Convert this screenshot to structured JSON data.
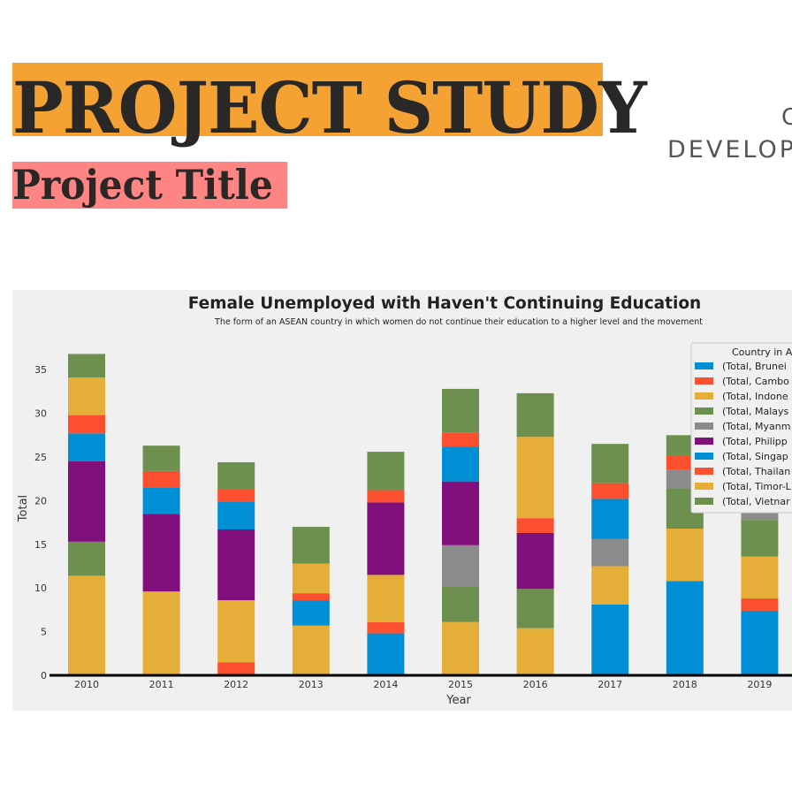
{
  "header": {
    "title": "PROJECT STUDY",
    "subtitle": "Project Title",
    "right_line1": "C",
    "right_line2": "DEVELOP"
  },
  "colors": {
    "title_highlight": "#f4a233",
    "subtitle_highlight": "#ff8585",
    "panel_bg": "#f0f0f0"
  },
  "chart_data": {
    "type": "bar",
    "stacked": true,
    "title": "Female Unemployed with Haven't Continuing Education",
    "subtitle": "The form of an ASEAN country in which women do not continue their education to a higher level and the movement",
    "xlabel": "Year",
    "ylabel": "Total",
    "ylim": [
      0,
      37.5
    ],
    "yticks": [
      0,
      5,
      10,
      15,
      20,
      25,
      30,
      35
    ],
    "grid": false,
    "legend_title": "Country in A",
    "legend_position": "right",
    "categories": [
      "2010",
      "2011",
      "2012",
      "2013",
      "2014",
      "2015",
      "2016",
      "2017",
      "2018",
      "2019"
    ],
    "series": [
      {
        "name": "(Total, Brunei",
        "color": "#008fd5",
        "values": [
          0,
          0,
          0,
          0,
          4.8,
          0,
          0,
          8.1,
          10.8,
          7.4
        ]
      },
      {
        "name": "(Total, Cambo",
        "color": "#fc4f30",
        "values": [
          0,
          0,
          1.5,
          0,
          1.3,
          0,
          0,
          0,
          0,
          1.4
        ]
      },
      {
        "name": "(Total, Indone",
        "color": "#e5ae38",
        "values": [
          11.4,
          9.6,
          7.1,
          5.7,
          5.4,
          6.1,
          5.4,
          4.4,
          6.0,
          4.8
        ]
      },
      {
        "name": "(Total, Malays",
        "color": "#6d904f",
        "values": [
          3.9,
          0,
          0,
          0,
          0,
          4.1,
          4.5,
          0,
          4.6,
          4.2
        ]
      },
      {
        "name": "(Total, Myanm",
        "color": "#8b8b8b",
        "values": [
          0,
          0,
          0,
          0,
          0,
          4.7,
          0,
          3.1,
          2.1,
          0.9
        ]
      },
      {
        "name": "(Total, Philipp",
        "color": "#810f7c",
        "values": [
          9.2,
          8.9,
          8.1,
          0,
          8.3,
          7.3,
          6.4,
          0,
          0,
          0
        ]
      },
      {
        "name": "(Total, Singap",
        "color": "#008fd5",
        "values": [
          3.2,
          3.0,
          3.2,
          2.9,
          0,
          4.0,
          0,
          4.6,
          0,
          0
        ]
      },
      {
        "name": "(Total, Thailan",
        "color": "#fc4f30",
        "values": [
          2.1,
          1.9,
          1.4,
          0.8,
          1.4,
          1.6,
          1.7,
          1.8,
          1.7,
          0
        ]
      },
      {
        "name": "(Total, Timor-L",
        "color": "#e5ae38",
        "values": [
          4.3,
          0,
          0,
          3.4,
          0,
          0,
          9.3,
          0,
          0,
          0
        ]
      },
      {
        "name": "(Total, Vietnar",
        "color": "#6d904f",
        "values": [
          2.7,
          2.9,
          3.1,
          4.2,
          4.4,
          5.0,
          5.0,
          4.5,
          2.3,
          2.2
        ]
      }
    ]
  }
}
